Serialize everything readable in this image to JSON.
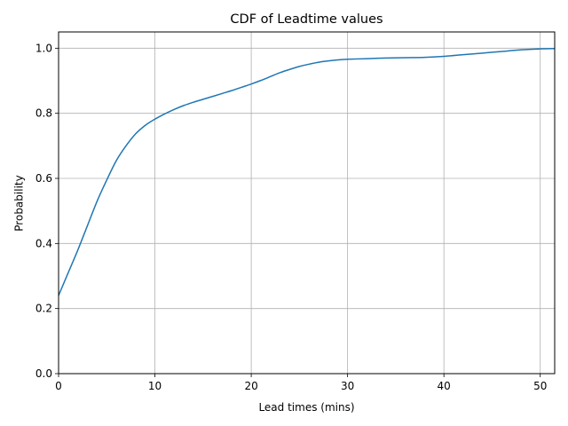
{
  "chart_data": {
    "type": "line",
    "title": "CDF of Leadtime values",
    "xlabel": "Lead times (mins)",
    "ylabel": "Probability",
    "xlim": [
      0,
      51.5
    ],
    "ylim": [
      0.0,
      1.05
    ],
    "xticks": [
      0,
      10,
      20,
      30,
      40,
      50
    ],
    "xtick_labels": [
      "0",
      "10",
      "20",
      "30",
      "40",
      "50"
    ],
    "yticks": [
      0.0,
      0.2,
      0.4,
      0.6,
      0.8,
      1.0
    ],
    "ytick_labels": [
      "0.0",
      "0.2",
      "0.4",
      "0.6",
      "0.8",
      "1.0"
    ],
    "grid": true,
    "series": [
      {
        "color": "#1f77b4",
        "x": [
          0,
          1,
          2,
          3,
          4,
          5,
          6,
          7,
          8,
          9,
          10,
          11,
          12,
          13,
          14,
          15,
          16,
          17,
          18,
          19,
          20,
          21,
          22,
          23,
          24,
          25,
          26,
          27,
          28,
          29,
          30,
          32,
          34,
          36,
          38,
          40,
          42,
          44,
          46,
          48,
          50,
          51.5
        ],
        "y": [
          0.24,
          0.31,
          0.38,
          0.455,
          0.53,
          0.595,
          0.655,
          0.7,
          0.737,
          0.763,
          0.782,
          0.798,
          0.812,
          0.824,
          0.834,
          0.843,
          0.852,
          0.861,
          0.87,
          0.88,
          0.89,
          0.901,
          0.913,
          0.925,
          0.935,
          0.944,
          0.951,
          0.957,
          0.961,
          0.964,
          0.966,
          0.968,
          0.97,
          0.971,
          0.972,
          0.975,
          0.98,
          0.985,
          0.99,
          0.995,
          0.998,
          0.999
        ]
      }
    ]
  }
}
